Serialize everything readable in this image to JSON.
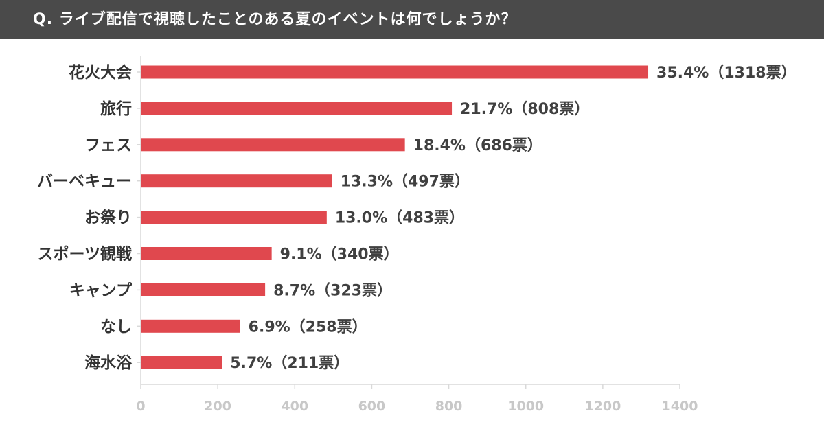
{
  "header": {
    "title": "Q. ライブ配信で視聴したことのある夏のイベントは何でしょうか？"
  },
  "chart_data": {
    "type": "bar",
    "orientation": "horizontal",
    "title": "Q. ライブ配信で視聴したことのある夏のイベントは何でしょうか？",
    "categories": [
      "花火大会",
      "旅行",
      "フェス",
      "バーベキュー",
      "お祭り",
      "スポーツ観戦",
      "キャンプ",
      "なし",
      "海水浴"
    ],
    "values": [
      1318,
      808,
      686,
      497,
      483,
      340,
      323,
      258,
      211
    ],
    "value_labels": [
      "35.4%（1318票）",
      "21.7%（808票）",
      "18.4%（686票）",
      "13.3%（497票）",
      "13.0%（483票）",
      "9.1%（340票）",
      "8.7%（323票）",
      "6.9%（258票）",
      "5.7%（211票）"
    ],
    "xlim": [
      0,
      1400
    ],
    "xticks": [
      0,
      200,
      400,
      600,
      800,
      1000,
      1200,
      1400
    ],
    "xtick_labels": [
      "0",
      "200",
      "400",
      "600",
      "800",
      "1000",
      "1200",
      "1400"
    ],
    "bar_color": "#e0484e",
    "axis_color": "#d9d9d9",
    "grid": false,
    "legend": "none"
  }
}
